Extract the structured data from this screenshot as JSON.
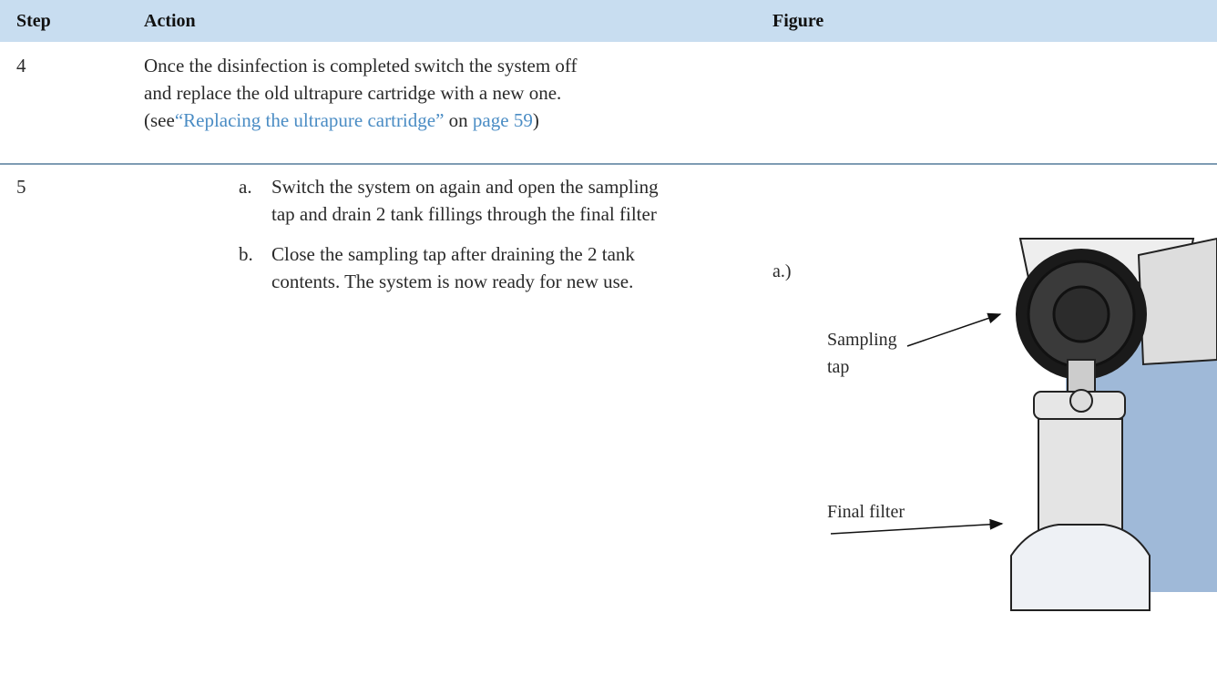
{
  "table": {
    "header": [
      "Step",
      "Action",
      "Figure"
    ],
    "rows": [
      {
        "step": "4",
        "lines": [
          "Once the disinfection is completed switch the system off",
          "and replace the old ultrapure cartridge with a new one."
        ],
        "reference": {
          "prefix": "(see",
          "link": "“Replacing the ultrapure cartridge”",
          "middle": "on",
          "page_link": "page 59",
          "suffix": ")"
        }
      },
      {
        "step": "5",
        "items": [
          {
            "marker": "a.",
            "lines": [
              "Switch the system on again and open the sampling",
              "tap and drain 2 tank fillings through the final filter"
            ]
          },
          {
            "marker": "b.",
            "lines": [
              "Close the sampling tap after draining the 2 tank",
              "contents. The system is now ready for new use."
            ]
          }
        ],
        "figure": {
          "caption": "a.)",
          "labels": [
            {
              "lines": [
                "Sampling",
                "tap"
              ]
            },
            {
              "lines": [
                "Final filter"
              ]
            }
          ]
        }
      }
    ]
  }
}
